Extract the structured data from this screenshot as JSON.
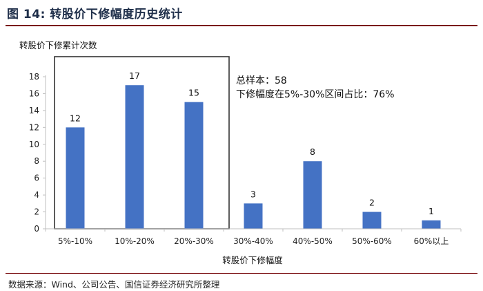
{
  "figure": {
    "title": "图 14:  转股价下修幅度历史统计",
    "source": "数据来源：Wind、公司公告、国信证券经济研究所整理"
  },
  "chart_data": {
    "type": "bar",
    "categories": [
      "5%-10%",
      "10%-20%",
      "20%-30%",
      "30%-40%",
      "40%-50%",
      "50%-60%",
      "60%以上"
    ],
    "values": [
      12,
      17,
      15,
      3,
      8,
      2,
      1
    ],
    "ylabel": "转股价下修累计次数",
    "xlabel": "转股价下修幅度",
    "ylim": [
      0,
      18
    ],
    "yticks": [
      0,
      2,
      4,
      6,
      8,
      10,
      12,
      14,
      16,
      18
    ],
    "bar_color": "#4472c4",
    "data_labels": true,
    "grid": false,
    "annotations": [
      "总样本：58",
      "下修幅度在5%-30%区间占比：76%"
    ],
    "highlight_box_categories": [
      "5%-10%",
      "10%-20%",
      "20%-30%"
    ]
  }
}
